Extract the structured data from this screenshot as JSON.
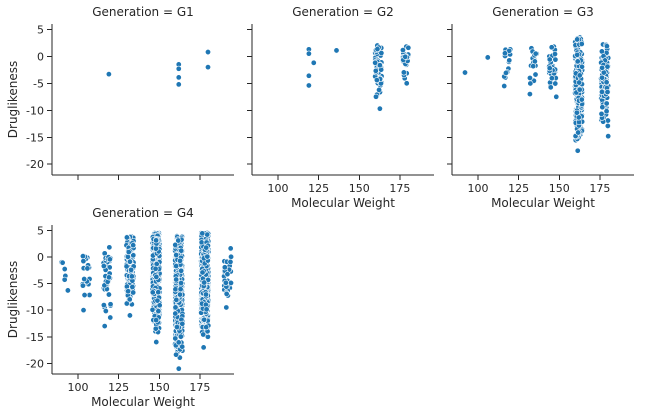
{
  "chart_data": {
    "type": "scatter",
    "facet_variable": "Generation",
    "xlabel": "Molecular Weight",
    "ylabel": "Druglikeness",
    "xlim": [
      84,
      196
    ],
    "ylim": [
      -22,
      6
    ],
    "x_ticks": [
      100,
      125,
      150,
      175
    ],
    "y_ticks": [
      5,
      0,
      -5,
      -10,
      -15,
      -20
    ],
    "grid": false,
    "point_color": "#1f77b4",
    "panels": [
      {
        "title": "Generation = G1",
        "clusters": [
          {
            "x": 119,
            "ys": [
              -3.3
            ]
          },
          {
            "x": 162,
            "ys": [
              -1.5,
              -2.3,
              -3.9,
              -5.2
            ]
          },
          {
            "x": 180,
            "ys": [
              0.8,
              -2.0
            ]
          }
        ]
      },
      {
        "title": "Generation = G2",
        "clusters": [
          {
            "x": 119,
            "ys": [
              1.3,
              0.5,
              -3.6,
              -5.4
            ]
          },
          {
            "x": 122,
            "ys": [
              -1.2
            ]
          },
          {
            "x": 136,
            "ys": [
              1.1
            ]
          },
          {
            "x": 162,
            "ymin": -9.7,
            "ymax": 2.0,
            "n": 55
          },
          {
            "x": 178,
            "ymin": -5.0,
            "ymax": 1.8,
            "n": 25
          }
        ]
      },
      {
        "title": "Generation = G3",
        "clusters": [
          {
            "x": 92,
            "ys": [
              -3.0
            ]
          },
          {
            "x": 106,
            "ys": [
              -0.2
            ]
          },
          {
            "x": 118,
            "ymin": -5.5,
            "ymax": 1.3,
            "n": 14
          },
          {
            "x": 134,
            "ymin": -7.0,
            "ymax": 1.5,
            "n": 18
          },
          {
            "x": 146,
            "ymin": -7.5,
            "ymax": 1.8,
            "n": 30
          },
          {
            "x": 162,
            "ymin": -17.5,
            "ymax": 3.5,
            "n": 260
          },
          {
            "x": 178,
            "ymin": -14.8,
            "ymax": 2.2,
            "n": 120
          }
        ]
      },
      {
        "title": "Generation = G4",
        "clusters": [
          {
            "x": 92,
            "ymin": -6.3,
            "ymax": -1.0,
            "n": 6
          },
          {
            "x": 105,
            "ymin": -10.0,
            "ymax": 0.2,
            "n": 22
          },
          {
            "x": 118,
            "ymin": -13.0,
            "ymax": 1.8,
            "n": 40
          },
          {
            "x": 132,
            "ymin": -11.0,
            "ymax": 3.8,
            "n": 150
          },
          {
            "x": 148,
            "ymin": -16.0,
            "ymax": 4.5,
            "n": 450
          },
          {
            "x": 162,
            "ymin": -21.0,
            "ymax": 3.9,
            "n": 520
          },
          {
            "x": 178,
            "ymin": -17.0,
            "ymax": 4.5,
            "n": 520
          },
          {
            "x": 192,
            "ymin": -9.5,
            "ymax": 1.6,
            "n": 30
          }
        ]
      }
    ]
  }
}
